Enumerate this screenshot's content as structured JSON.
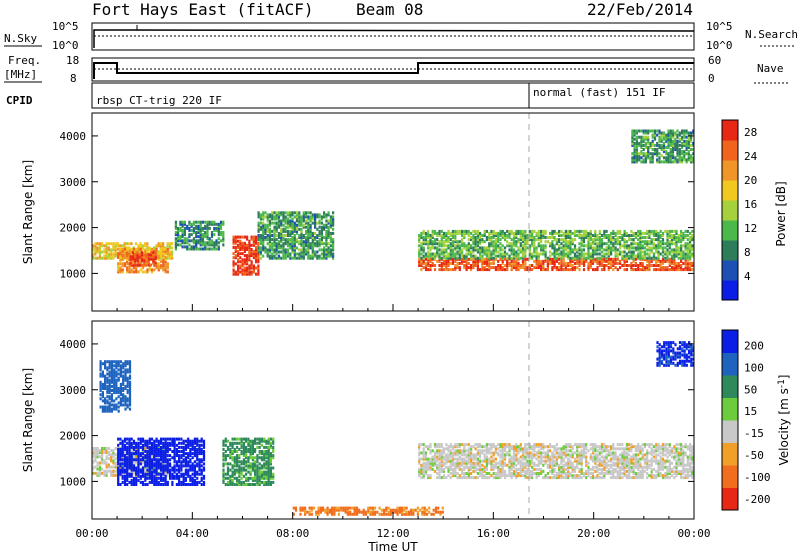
{
  "header": {
    "station": "Fort Hays East (fitACF)",
    "beam": "Beam 08",
    "date": "22/Feb/2014"
  },
  "top_panels": {
    "nsky_label": "N.Sky",
    "nsky_tick_hi": "10^5",
    "nsky_tick_lo": "10^0",
    "nsearch_label": "N.Search",
    "nsearch_tick_hi": "10^5",
    "nsearch_tick_lo": "10^0",
    "freq_label_1": "Freq.",
    "freq_label_2": "[MHz]",
    "freq_tick_hi": "18",
    "freq_tick_lo": "8",
    "nave_label": "Nave",
    "nave_tick_hi": "60",
    "nave_tick_lo": "0",
    "cpid_label": "CPID",
    "cpid_mode_1": "rbsp CT-trig 220 IF",
    "cpid_mode_2": "normal (fast) 151 IF"
  },
  "axes": {
    "x_label": "Time UT",
    "y_label": "Slant Range [km]",
    "x_ticks": [
      "00:00",
      "04:00",
      "08:00",
      "12:00",
      "16:00",
      "20:00",
      "00:00"
    ],
    "y_ticks": [
      "1000",
      "2000",
      "3000",
      "4000"
    ]
  },
  "power_scale": {
    "label": "Power [dB]",
    "ticks": [
      "4",
      "8",
      "12",
      "16",
      "20",
      "24",
      "28"
    ],
    "colors": [
      "#0a1ee6",
      "#1e50b4",
      "#2e7d5a",
      "#4cb84c",
      "#a5d23c",
      "#f0c81e",
      "#f09628",
      "#f0641e",
      "#e62814"
    ]
  },
  "velocity_scale": {
    "label": "Velocity [m s",
    "label_sup": "-1",
    "label_end": "]",
    "ticks": [
      "200",
      "100",
      "50",
      "15",
      "-15",
      "-50",
      "-100",
      "-200"
    ],
    "colors": [
      "#0a1ee6",
      "#1e64be",
      "#2e8a5a",
      "#6ccc3c",
      "#c8c8c8",
      "#f0a028",
      "#f06e1e",
      "#e62814"
    ]
  },
  "chart_data": [
    {
      "type": "line",
      "title": "N.Sky / N.Search",
      "x_range_hours": [
        0,
        24
      ],
      "note_series": "noise sky (solid) near 10^4, noise search (dotted) near 10^3.5",
      "series": [
        {
          "name": "N.Sky",
          "x": [
            0,
            24
          ],
          "y": [
            10000,
            10000
          ]
        },
        {
          "name": "N.Search",
          "x": [
            0,
            24
          ],
          "y": [
            3000,
            3000
          ]
        }
      ]
    },
    {
      "type": "line",
      "title": "Freq. [MHz] / Nave",
      "x_range_hours": [
        0,
        24
      ],
      "series": [
        {
          "name": "Freq. [MHz]",
          "x": [
            0,
            1,
            1,
            13,
            13,
            24
          ],
          "y": [
            15,
            15,
            11,
            11,
            15,
            15
          ]
        },
        {
          "name": "Nave",
          "x": [
            0,
            24
          ],
          "y": [
            18,
            18
          ]
        }
      ]
    },
    {
      "type": "heatmap",
      "title": "Power [dB]",
      "x_range_hours": [
        0,
        24
      ],
      "y_range_km": [
        180,
        4500
      ],
      "cbar_range": [
        0,
        30
      ],
      "regions": [
        {
          "t": [
            0.0,
            3.2
          ],
          "r": [
            1300,
            1650
          ],
          "v": 18
        },
        {
          "t": [
            1.0,
            3.0
          ],
          "r": [
            1000,
            1500
          ],
          "v": 22
        },
        {
          "t": [
            1.5,
            2.5
          ],
          "r": [
            1150,
            1450
          ],
          "v": 27
        },
        {
          "t": [
            3.3,
            5.2
          ],
          "r": [
            1500,
            2100
          ],
          "v": 9
        },
        {
          "t": [
            5.6,
            6.6
          ],
          "r": [
            950,
            1800
          ],
          "v": 28
        },
        {
          "t": [
            6.6,
            9.6
          ],
          "r": [
            1300,
            2300
          ],
          "v": 10
        },
        {
          "t": [
            13.0,
            24.0
          ],
          "r": [
            1050,
            1300
          ],
          "v": 26
        },
        {
          "t": [
            13.0,
            24.0
          ],
          "r": [
            1300,
            1900
          ],
          "v": 12
        },
        {
          "t": [
            21.5,
            24.0
          ],
          "r": [
            3400,
            4100
          ],
          "v": 10
        }
      ]
    },
    {
      "type": "heatmap",
      "title": "Velocity [m s-1]",
      "x_range_hours": [
        0,
        24
      ],
      "y_range_km": [
        180,
        4500
      ],
      "cbar_range": [
        -200,
        200
      ],
      "regions": [
        {
          "t": [
            0.0,
            3.0
          ],
          "r": [
            1100,
            1700
          ],
          "v": 0
        },
        {
          "t": [
            0.3,
            1.5
          ],
          "r": [
            2500,
            3600
          ],
          "v": 150
        },
        {
          "t": [
            1.0,
            4.5
          ],
          "r": [
            900,
            1900
          ],
          "v": 220
        },
        {
          "t": [
            5.2,
            7.2
          ],
          "r": [
            900,
            1900
          ],
          "v": 60
        },
        {
          "t": [
            13.0,
            24.0
          ],
          "r": [
            1050,
            1800
          ],
          "v": 0
        },
        {
          "t": [
            8.0,
            14.0
          ],
          "r": [
            250,
            400
          ],
          "v": -60
        },
        {
          "t": [
            22.5,
            24.0
          ],
          "r": [
            3500,
            4000
          ],
          "v": 210
        }
      ]
    }
  ]
}
